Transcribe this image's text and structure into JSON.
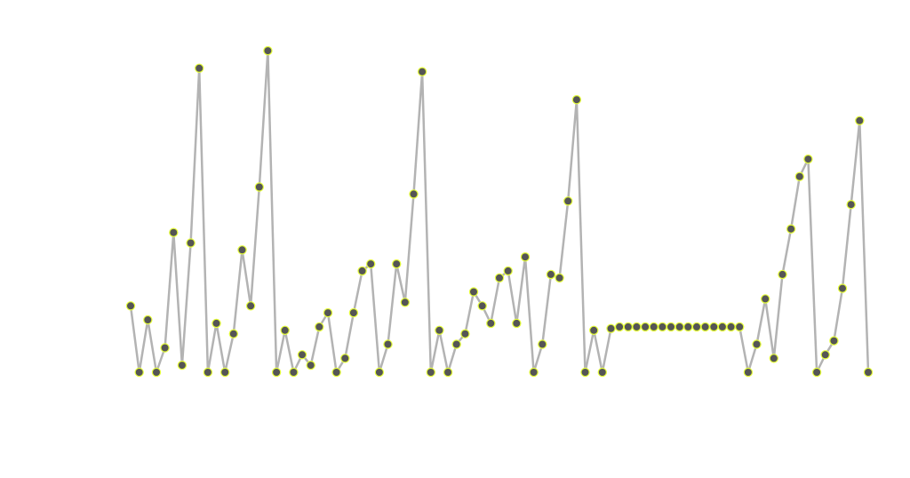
{
  "chart_data": {
    "type": "line",
    "title": "",
    "xlabel": "",
    "ylabel": "",
    "grid": false,
    "legend": "none",
    "xlim": [
      0,
      86
    ],
    "ylim": [
      0,
      90
    ],
    "colors": {
      "line": "#b3b3b3",
      "point_fill": "#555555",
      "point_stroke": "#e6ff3a",
      "background": "#ffffff"
    },
    "series": [
      {
        "points": [
          [
            0,
            19
          ],
          [
            1,
            0
          ],
          [
            2,
            15
          ],
          [
            3,
            0
          ],
          [
            4,
            7
          ],
          [
            5,
            40
          ],
          [
            6,
            2
          ],
          [
            7,
            37
          ],
          [
            8,
            87
          ],
          [
            9,
            0
          ],
          [
            10,
            14
          ],
          [
            11,
            0
          ],
          [
            12,
            11
          ],
          [
            13,
            35
          ],
          [
            14,
            19
          ],
          [
            15,
            53
          ],
          [
            16,
            92
          ],
          [
            17,
            0
          ],
          [
            18,
            12
          ],
          [
            19,
            0
          ],
          [
            20,
            5
          ],
          [
            21,
            2
          ],
          [
            22,
            13
          ],
          [
            23,
            17
          ],
          [
            24,
            0
          ],
          [
            25,
            4
          ],
          [
            26,
            17
          ],
          [
            27,
            29
          ],
          [
            28,
            31
          ],
          [
            29,
            0
          ],
          [
            30,
            8
          ],
          [
            31,
            31
          ],
          [
            32,
            20
          ],
          [
            33,
            51
          ],
          [
            34,
            86
          ],
          [
            35,
            0
          ],
          [
            36,
            12
          ],
          [
            37,
            0
          ],
          [
            38,
            8
          ],
          [
            39,
            11
          ],
          [
            40,
            23
          ],
          [
            41,
            19
          ],
          [
            42,
            14
          ],
          [
            43,
            27
          ],
          [
            44,
            29
          ],
          [
            45,
            14
          ],
          [
            46,
            33
          ],
          [
            47,
            0
          ],
          [
            48,
            8
          ],
          [
            49,
            28
          ],
          [
            50,
            27
          ],
          [
            51,
            49
          ],
          [
            52,
            78
          ],
          [
            53,
            0
          ],
          [
            54,
            12
          ],
          [
            55,
            0
          ],
          [
            56,
            12.5
          ],
          [
            57,
            13
          ],
          [
            58,
            13
          ],
          [
            59,
            13
          ],
          [
            60,
            13
          ],
          [
            61,
            13
          ],
          [
            62,
            13
          ],
          [
            63,
            13
          ],
          [
            64,
            13
          ],
          [
            65,
            13
          ],
          [
            66,
            13
          ],
          [
            67,
            13
          ],
          [
            68,
            13
          ],
          [
            69,
            13
          ],
          [
            70,
            13
          ],
          [
            71,
            13
          ],
          [
            72,
            0
          ],
          [
            73,
            8
          ],
          [
            74,
            21
          ],
          [
            75,
            4
          ],
          [
            76,
            28
          ],
          [
            77,
            41
          ],
          [
            78,
            56
          ],
          [
            79,
            61
          ],
          [
            80,
            0
          ],
          [
            81,
            5
          ],
          [
            82,
            9
          ],
          [
            83,
            24
          ],
          [
            84,
            48
          ],
          [
            85,
            72
          ],
          [
            86,
            0
          ]
        ]
      }
    ]
  }
}
